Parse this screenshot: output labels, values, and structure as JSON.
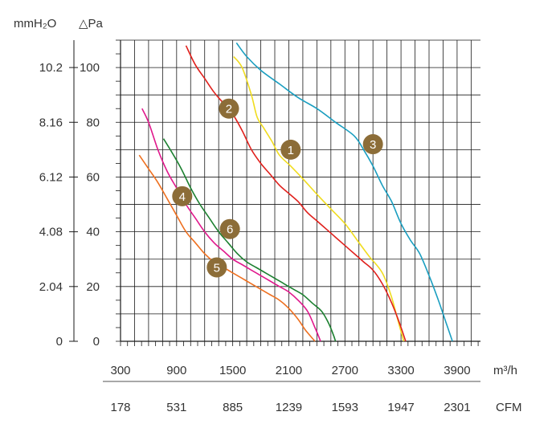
{
  "chart_data": {
    "type": "line",
    "title": "",
    "y_label_left": "mmH₂O",
    "y_label_right": "△Pa",
    "x_unit_primary": "m³/h",
    "x_unit_secondary": "CFM",
    "xlim": [
      300,
      4150
    ],
    "ylim": [
      0,
      110
    ],
    "x_ticks_primary": [
      "300",
      "900",
      "1500",
      "2100",
      "2700",
      "3300",
      "3900"
    ],
    "x_ticks_primary_values": [
      300,
      900,
      1500,
      2100,
      2700,
      3300,
      3900
    ],
    "x_ticks_secondary": [
      "178",
      "531",
      "885",
      "1239",
      "1593",
      "1947",
      "2301"
    ],
    "y_ticks_pa": [
      "0",
      "20",
      "40",
      "60",
      "80",
      "100"
    ],
    "y_ticks_pa_values": [
      0,
      20,
      40,
      60,
      80,
      100
    ],
    "y_ticks_mmh2o": [
      "0",
      "2.04",
      "4.08",
      "6.12",
      "8.16",
      "10.2"
    ],
    "grid": true,
    "series": [
      {
        "name": "1",
        "color": "#f0dc1e",
        "label_at": [
          2120,
          70
        ],
        "points": [
          [
            1510,
            104
          ],
          [
            1600,
            100
          ],
          [
            1700,
            90
          ],
          [
            1760,
            82
          ],
          [
            1830,
            78
          ],
          [
            1920,
            73
          ],
          [
            2000,
            68
          ],
          [
            2120,
            64
          ],
          [
            2260,
            59
          ],
          [
            2420,
            53
          ],
          [
            2560,
            48
          ],
          [
            2700,
            43
          ],
          [
            2830,
            37
          ],
          [
            2960,
            31
          ],
          [
            3100,
            25
          ],
          [
            3200,
            16
          ],
          [
            3280,
            6
          ],
          [
            3330,
            0
          ]
        ]
      },
      {
        "name": "2",
        "color": "#e0201c",
        "label_at": [
          1460,
          85
        ],
        "points": [
          [
            1000,
            108
          ],
          [
            1100,
            101
          ],
          [
            1200,
            96
          ],
          [
            1300,
            91
          ],
          [
            1400,
            87
          ],
          [
            1500,
            83
          ],
          [
            1600,
            77
          ],
          [
            1700,
            70
          ],
          [
            1800,
            65
          ],
          [
            1900,
            61
          ],
          [
            2000,
            57
          ],
          [
            2100,
            54
          ],
          [
            2200,
            51
          ],
          [
            2300,
            47
          ],
          [
            2400,
            44
          ],
          [
            2500,
            41
          ],
          [
            2600,
            38
          ],
          [
            2700,
            35
          ],
          [
            2800,
            32
          ],
          [
            2900,
            29
          ],
          [
            3000,
            26
          ],
          [
            3100,
            21
          ],
          [
            3200,
            14
          ],
          [
            3280,
            7
          ],
          [
            3350,
            0
          ]
        ]
      },
      {
        "name": "3",
        "color": "#1a9ec0",
        "label_at": [
          3000,
          72
        ],
        "points": [
          [
            1540,
            109
          ],
          [
            1650,
            104
          ],
          [
            1800,
            99
          ],
          [
            2000,
            94
          ],
          [
            2200,
            89
          ],
          [
            2400,
            85
          ],
          [
            2600,
            80
          ],
          [
            2800,
            75
          ],
          [
            2900,
            70
          ],
          [
            3000,
            64
          ],
          [
            3100,
            57
          ],
          [
            3200,
            51
          ],
          [
            3300,
            43
          ],
          [
            3400,
            37
          ],
          [
            3500,
            32
          ],
          [
            3600,
            24
          ],
          [
            3700,
            15
          ],
          [
            3780,
            7
          ],
          [
            3850,
            0
          ]
        ]
      },
      {
        "name": "4",
        "color": "#e0188c",
        "label_at": [
          960,
          53
        ],
        "points": [
          [
            530,
            85
          ],
          [
            600,
            80
          ],
          [
            700,
            70
          ],
          [
            800,
            62
          ],
          [
            900,
            56
          ],
          [
            1000,
            50
          ],
          [
            1100,
            45
          ],
          [
            1200,
            40
          ],
          [
            1300,
            36
          ],
          [
            1400,
            33
          ],
          [
            1500,
            30
          ],
          [
            1600,
            28
          ],
          [
            1700,
            26
          ],
          [
            1800,
            24
          ],
          [
            1900,
            22
          ],
          [
            2000,
            20
          ],
          [
            2100,
            18
          ],
          [
            2200,
            15
          ],
          [
            2300,
            11
          ],
          [
            2380,
            5
          ],
          [
            2440,
            0
          ]
        ]
      },
      {
        "name": "5",
        "color": "#ee7020",
        "label_at": [
          1330,
          27
        ],
        "points": [
          [
            500,
            68
          ],
          [
            600,
            63
          ],
          [
            700,
            58
          ],
          [
            800,
            52
          ],
          [
            900,
            46
          ],
          [
            1000,
            40
          ],
          [
            1100,
            36
          ],
          [
            1200,
            32
          ],
          [
            1300,
            29
          ],
          [
            1400,
            27
          ],
          [
            1500,
            25
          ],
          [
            1600,
            23
          ],
          [
            1700,
            21
          ],
          [
            1800,
            19
          ],
          [
            1900,
            17
          ],
          [
            2000,
            15
          ],
          [
            2100,
            12
          ],
          [
            2200,
            8
          ],
          [
            2280,
            4
          ],
          [
            2380,
            0
          ]
        ]
      },
      {
        "name": "6",
        "color": "#1c8030",
        "label_at": [
          1470,
          41
        ],
        "points": [
          [
            760,
            74
          ],
          [
            850,
            69
          ],
          [
            950,
            63
          ],
          [
            1050,
            56
          ],
          [
            1150,
            50
          ],
          [
            1250,
            45
          ],
          [
            1350,
            40
          ],
          [
            1450,
            36
          ],
          [
            1550,
            32
          ],
          [
            1650,
            29
          ],
          [
            1750,
            27
          ],
          [
            1850,
            25
          ],
          [
            1950,
            23
          ],
          [
            2050,
            21
          ],
          [
            2150,
            19
          ],
          [
            2250,
            17
          ],
          [
            2350,
            14
          ],
          [
            2450,
            11
          ],
          [
            2520,
            7
          ],
          [
            2570,
            3
          ],
          [
            2600,
            0
          ]
        ]
      }
    ]
  }
}
